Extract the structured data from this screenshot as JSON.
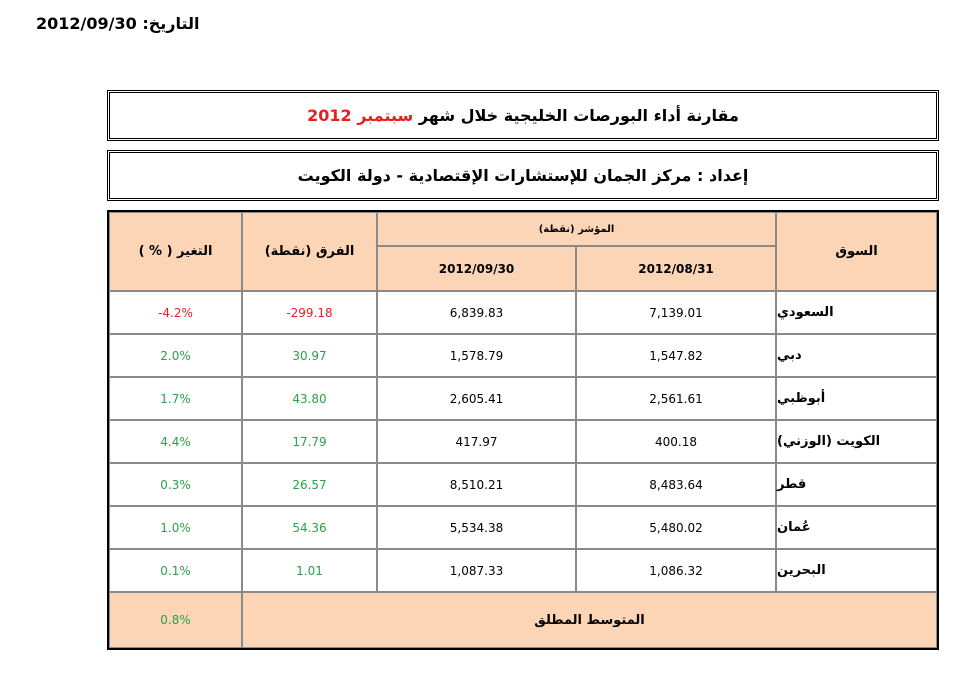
{
  "header": {
    "date_label": "التاريخ:",
    "date_value": "2012/09/30"
  },
  "title": {
    "main_prefix": "مقارنة أداء البورصات الخليجية خلال شهر",
    "month_year": "سبتمبر 2012",
    "prepared_by": "إعداد : مركز الجمان للإستشارات الإقتصادية - دولة الكويت"
  },
  "table": {
    "headers": {
      "market": "السوق",
      "index_group": "المؤشر (نقطة)",
      "date1": "2012/08/31",
      "date2": "2012/09/30",
      "diff": "الفرق (نقطة)",
      "change": "التغير ( % )"
    },
    "rows": [
      {
        "market": "السعودي",
        "v1": "7,139.01",
        "v2": "6,839.83",
        "diff": "-299.18",
        "change": "-4.2%"
      },
      {
        "market": "دبي",
        "v1": "1,547.82",
        "v2": "1,578.79",
        "diff": "30.97",
        "change": "2.0%"
      },
      {
        "market": "أبوظبي",
        "v1": "2,561.61",
        "v2": "2,605.41",
        "diff": "43.80",
        "change": "1.7%"
      },
      {
        "market": "الكويت (الوزني)",
        "v1": "400.18",
        "v2": "417.97",
        "diff": "17.79",
        "change": "4.4%"
      },
      {
        "market": "قطر",
        "v1": "8,483.64",
        "v2": "8,510.21",
        "diff": "26.57",
        "change": "0.3%"
      },
      {
        "market": "عُمان",
        "v1": "5,480.02",
        "v2": "5,534.38",
        "diff": "54.36",
        "change": "1.0%"
      },
      {
        "market": "البحرين",
        "v1": "1,086.32",
        "v2": "1,087.33",
        "diff": "1.01",
        "change": "0.1%"
      }
    ],
    "footer": {
      "label": "المتوسط المطلق",
      "value": "0.8%"
    }
  },
  "colors": {
    "header_fill": "#fbd5b5",
    "negative": "#e8201d",
    "positive": "#2aa24a"
  }
}
